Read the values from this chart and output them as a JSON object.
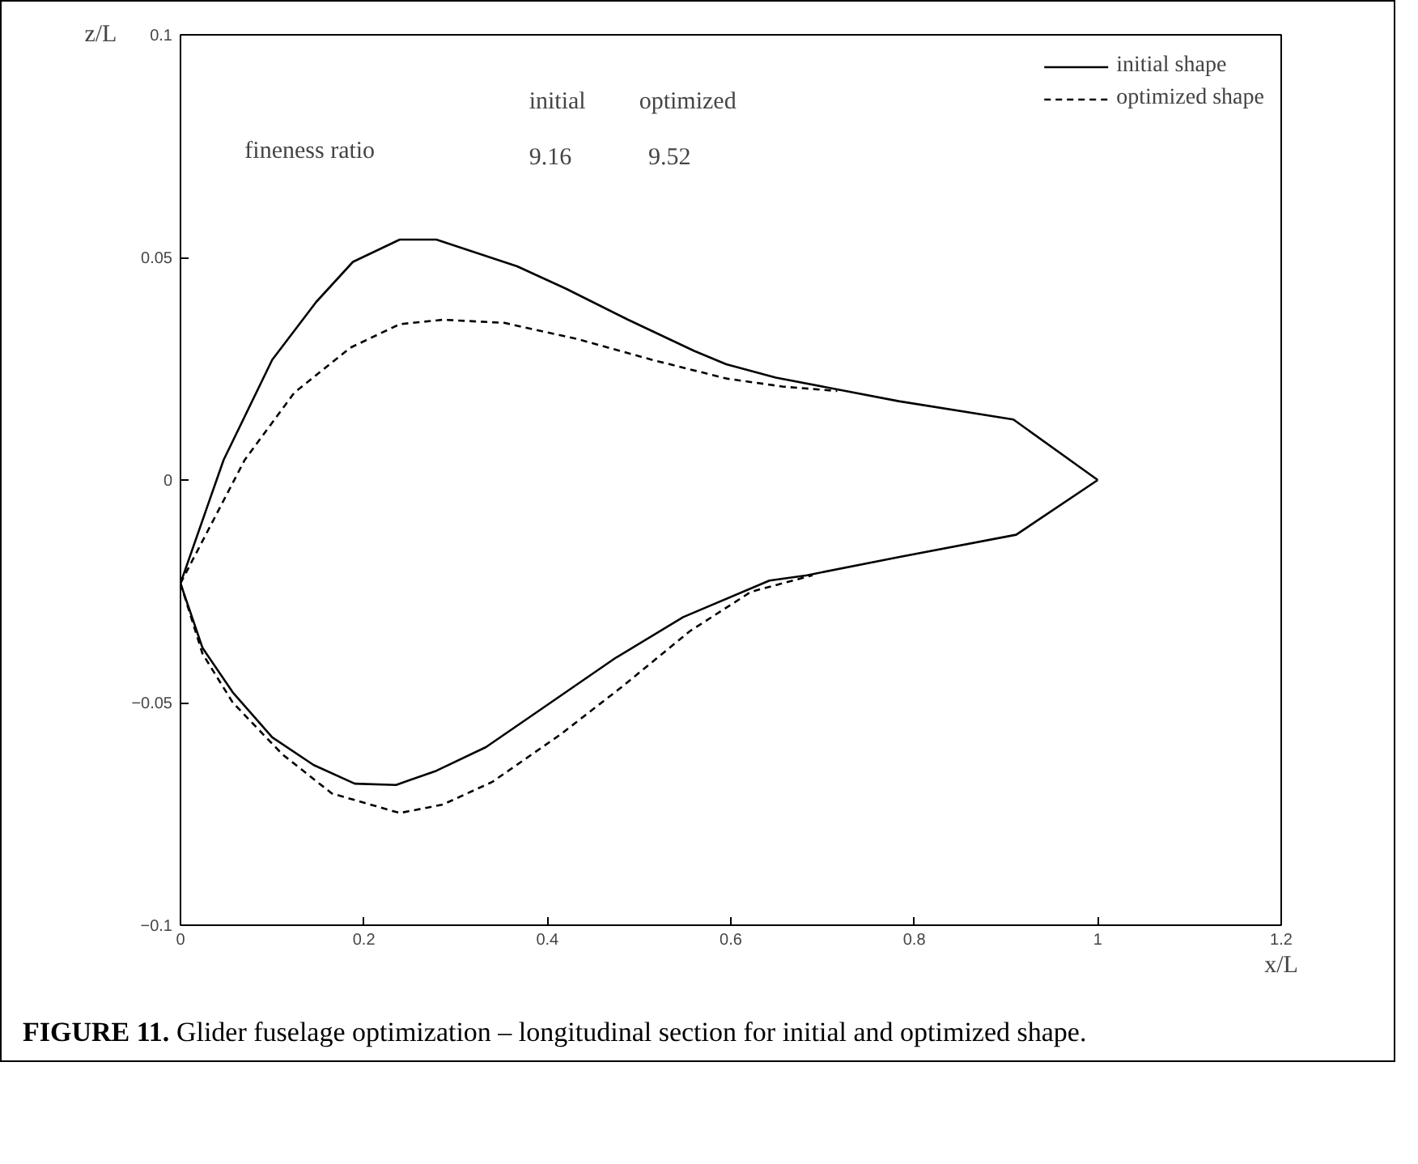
{
  "chart_data": {
    "type": "line",
    "xlabel": "x/L",
    "ylabel": "z/L",
    "xlim": [
      0,
      1.2
    ],
    "ylim": [
      -0.1,
      0.1
    ],
    "xticks": [
      0,
      0.2,
      0.4,
      0.6,
      0.8,
      1,
      1.2
    ],
    "yticks": [
      {
        "value": -0.1,
        "label": "−0.1"
      },
      {
        "value": -0.05,
        "label": "−0.05"
      },
      0,
      0.05,
      0.1
    ],
    "grid": false,
    "legend": "top right",
    "marker": "none",
    "annotations": [
      "initial",
      "optimized",
      "fineness ratio",
      "9.16",
      "9.52",
      "FIGURE 11. Glider fuselage optimization – longitudinal section for initial and optimized shape."
    ],
    "series": [
      {
        "name": "initial shape",
        "color": "#000000",
        "line_style": "solid",
        "x": [
          0,
          0.047,
          0.1,
          0.148,
          0.188,
          0.239,
          0.279,
          0.367,
          0.42,
          0.488,
          0.56,
          0.595,
          0.649,
          0.783,
          0.908,
          1.0,
          null,
          0,
          0.024,
          0.057,
          0.1,
          0.145,
          0.19,
          0.235,
          0.279,
          0.333,
          0.393,
          0.474,
          0.548,
          0.642,
          0.683,
          0.783,
          0.911,
          1.0
        ],
        "values": [
          -0.0232,
          0.0045,
          0.027,
          0.04,
          0.049,
          0.054,
          0.054,
          0.048,
          0.043,
          0.036,
          0.029,
          0.026,
          0.023,
          0.0177,
          0.0136,
          0,
          null,
          -0.0232,
          -0.0377,
          -0.0477,
          -0.0578,
          -0.064,
          -0.0682,
          -0.0685,
          -0.0653,
          -0.06,
          -0.0515,
          -0.04,
          -0.0308,
          -0.0226,
          -0.0214,
          -0.0173,
          -0.0123,
          0
        ]
      },
      {
        "name": "optimized shape",
        "color": "#000000",
        "line_style": "dashed",
        "x": [
          0,
          0.07,
          0.124,
          0.185,
          0.239,
          0.286,
          0.353,
          0.434,
          0.514,
          0.595,
          0.656,
          0.716,
          null,
          0,
          0.024,
          0.057,
          0.111,
          0.165,
          0.239,
          0.286,
          0.34,
          0.414,
          0.481,
          0.555,
          0.622,
          0.689
        ],
        "values": [
          -0.0232,
          0.0045,
          0.0196,
          0.0297,
          0.035,
          0.036,
          0.0353,
          0.0316,
          0.027,
          0.0228,
          0.021,
          0.02,
          null,
          -0.0232,
          -0.039,
          -0.05,
          -0.0616,
          -0.0704,
          -0.0748,
          -0.0729,
          -0.0678,
          -0.0572,
          -0.0465,
          -0.034,
          -0.0251,
          -0.0214
        ]
      }
    ]
  }
}
